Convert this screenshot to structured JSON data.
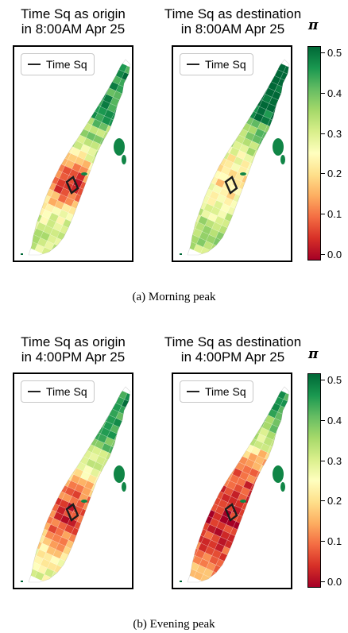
{
  "colorbar": {
    "symbol": "π",
    "ticks": [
      "0.0",
      "0.1",
      "0.2",
      "0.3",
      "0.4",
      "0.5"
    ],
    "range": [
      0,
      0.5
    ],
    "colormap": [
      "#a50026",
      "#d73027",
      "#f46d43",
      "#fdae61",
      "#fee08b",
      "#ffffbf",
      "#d9ef8b",
      "#a6d96a",
      "#66bd63",
      "#1a9850",
      "#006837"
    ]
  },
  "legend_label": "Time Sq",
  "figures": [
    {
      "caption": "(a)  Morning peak",
      "panels": [
        {
          "title_line1": "Time Sq as origin",
          "title_line2": "in 8:00AM Apr 25",
          "mode": "morning-origin"
        },
        {
          "title_line1": "Time Sq as destination",
          "title_line2": "in 8:00AM Apr 25",
          "mode": "morning-destination"
        }
      ]
    },
    {
      "caption": "(b)  Evening peak",
      "panels": [
        {
          "title_line1": "Time Sq as origin",
          "title_line2": "in 4:00PM Apr 25",
          "mode": "evening-origin"
        },
        {
          "title_line1": "Time Sq as destination",
          "title_line2": "in 4:00PM Apr 25",
          "mode": "evening-destination"
        }
      ]
    }
  ]
}
